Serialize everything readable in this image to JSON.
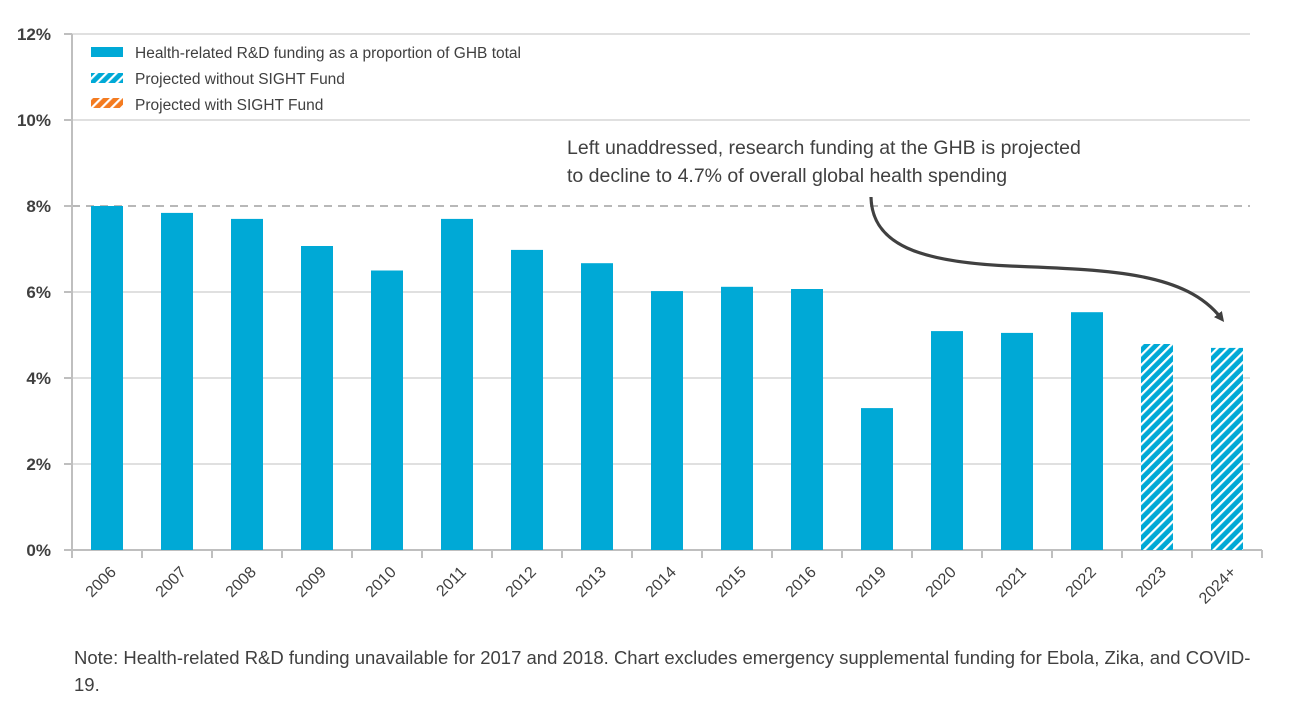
{
  "chart_data": {
    "type": "bar",
    "title": "",
    "xlabel": "",
    "ylabel": "",
    "ylim": [
      0,
      12
    ],
    "y_ticks": [
      "0%",
      "2%",
      "4%",
      "6%",
      "8%",
      "10%",
      "12%"
    ],
    "y_tick_values": [
      0,
      2,
      4,
      6,
      8,
      10,
      12
    ],
    "grid": true,
    "reference_line": {
      "value": 8,
      "style": "dashed"
    },
    "categories": [
      "2006",
      "2007",
      "2008",
      "2009",
      "2010",
      "2011",
      "2012",
      "2013",
      "2014",
      "2015",
      "2016",
      "2019",
      "2020",
      "2021",
      "2022",
      "2023",
      "2024+"
    ],
    "series": [
      {
        "name": "Health-related R&D funding as a proportion of GHB total",
        "style": "solid",
        "color": "#00A9D6",
        "values": [
          8.0,
          7.84,
          7.7,
          7.07,
          6.5,
          7.7,
          6.98,
          6.67,
          6.02,
          6.12,
          6.07,
          3.3,
          5.09,
          5.05,
          5.53,
          null,
          null
        ]
      },
      {
        "name": "Projected without SIGHT Fund",
        "style": "hatched",
        "color": "#00A9D6",
        "values": [
          null,
          null,
          null,
          null,
          null,
          null,
          null,
          null,
          null,
          null,
          null,
          null,
          null,
          null,
          null,
          4.79,
          4.7
        ]
      },
      {
        "name": "Projected with SIGHT Fund",
        "style": "hatched",
        "color": "#F47B20",
        "values": [
          null,
          null,
          null,
          null,
          null,
          null,
          null,
          null,
          null,
          null,
          null,
          null,
          null,
          null,
          null,
          null,
          null
        ]
      }
    ],
    "legend_placement": "top-left",
    "annotation": {
      "lines": [
        "Left unaddressed, research funding at the GHB is projected",
        "to decline to 4.7% of overall global health spending"
      ],
      "points_to": "2024+"
    }
  },
  "note": "Note: Health-related R&D funding unavailable for 2017 and 2018. Chart excludes emergency supplemental funding for Ebola, Zika, and COVID-19.",
  "colors": {
    "bar": "#00A9D6",
    "orange": "#F47B20",
    "axis": "#BFBFBF",
    "grid": "#E0E0E0",
    "dashed": "#B8B8B8",
    "text": "#404040",
    "arrow": "#404040"
  }
}
